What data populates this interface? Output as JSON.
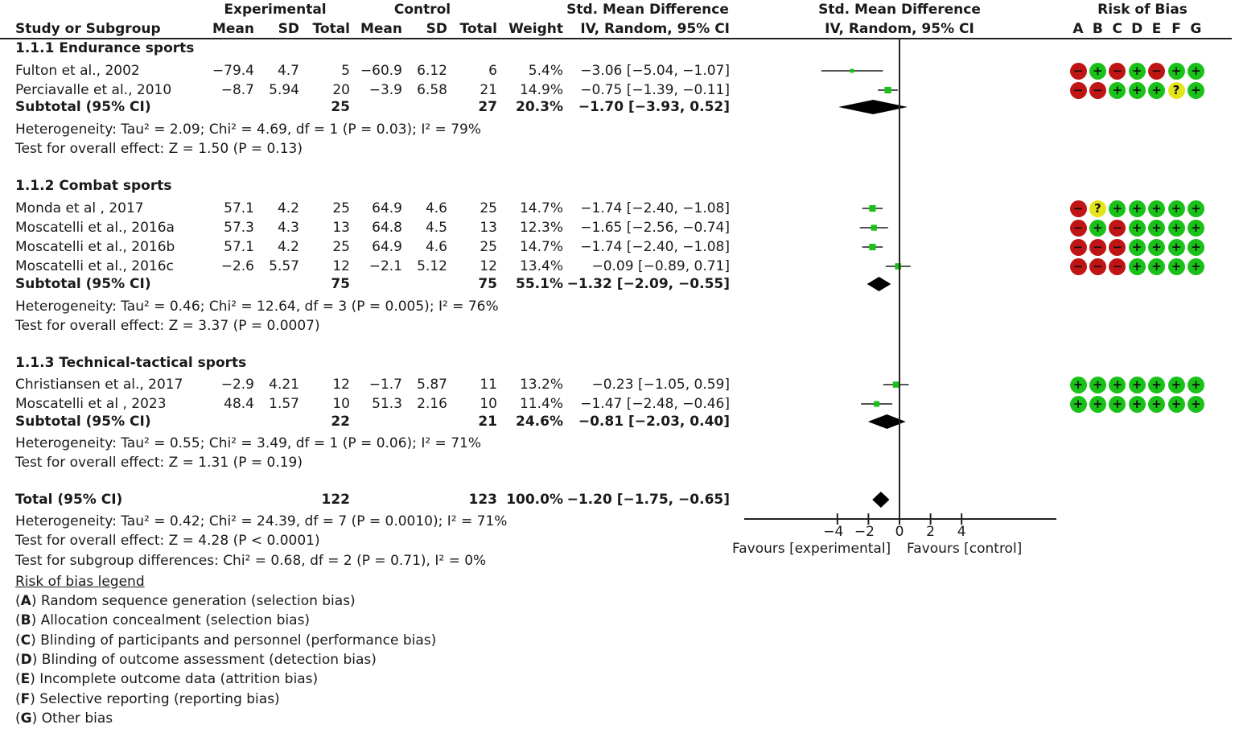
{
  "header": {
    "group_experimental": "Experimental",
    "group_control": "Control",
    "smd_title": "Std. Mean Difference",
    "smd_method": "IV, Random, 95% CI",
    "plot_title": "Std. Mean Difference",
    "plot_method": "IV, Random, 95% CI",
    "rob_title": "Risk of Bias",
    "col_study": "Study or Subgroup",
    "col_mean": "Mean",
    "col_sd": "SD",
    "col_total": "Total",
    "col_weight": "Weight",
    "rob_letters": [
      "A",
      "B",
      "C",
      "D",
      "E",
      "F",
      "G"
    ]
  },
  "subgroups": [
    {
      "title": "1.1.1 Endurance sports",
      "studies": [
        {
          "name": "Fulton et al., 2002",
          "e_mean": "−79.4",
          "e_sd": "4.7",
          "e_total": "5",
          "c_mean": "−60.9",
          "c_sd": "6.12",
          "c_total": "6",
          "weight": "5.4%",
          "ci": "−3.06 [−5.04, −1.07]",
          "rob": [
            "-",
            "+",
            "-",
            "+",
            "-",
            "+",
            "+"
          ]
        },
        {
          "name": "Perciavalle et al., 2010",
          "e_mean": "−8.7",
          "e_sd": "5.94",
          "e_total": "20",
          "c_mean": "−3.9",
          "c_sd": "6.58",
          "c_total": "21",
          "weight": "14.9%",
          "ci": "−0.75 [−1.39, −0.11]",
          "rob": [
            "-",
            "-",
            "+",
            "+",
            "+",
            "?",
            "+"
          ]
        }
      ],
      "subtotal": {
        "label": "Subtotal (95% CI)",
        "e_total": "25",
        "c_total": "27",
        "weight": "20.3%",
        "ci": "−1.70 [−3.93, 0.52]"
      },
      "heterogeneity": "Heterogeneity: Tau² = 2.09; Chi² = 4.69, df = 1 (P = 0.03); I² = 79%",
      "overall": "Test for overall effect: Z = 1.50 (P = 0.13)"
    },
    {
      "title": "1.1.2 Combat sports",
      "studies": [
        {
          "name": "Monda et al , 2017",
          "e_mean": "57.1",
          "e_sd": "4.2",
          "e_total": "25",
          "c_mean": "64.9",
          "c_sd": "4.6",
          "c_total": "25",
          "weight": "14.7%",
          "ci": "−1.74 [−2.40, −1.08]",
          "rob": [
            "-",
            "?",
            "+",
            "+",
            "+",
            "+",
            "+"
          ]
        },
        {
          "name": "Moscatelli et al., 2016a",
          "e_mean": "57.3",
          "e_sd": "4.3",
          "e_total": "13",
          "c_mean": "64.8",
          "c_sd": "4.5",
          "c_total": "13",
          "weight": "12.3%",
          "ci": "−1.65 [−2.56, −0.74]",
          "rob": [
            "-",
            "+",
            "-",
            "+",
            "+",
            "+",
            "+"
          ]
        },
        {
          "name": "Moscatelli et al., 2016b",
          "e_mean": "57.1",
          "e_sd": "4.2",
          "e_total": "25",
          "c_mean": "64.9",
          "c_sd": "4.6",
          "c_total": "25",
          "weight": "14.7%",
          "ci": "−1.74 [−2.40, −1.08]",
          "rob": [
            "-",
            "-",
            "-",
            "+",
            "+",
            "+",
            "+"
          ]
        },
        {
          "name": "Moscatelli et al., 2016c",
          "e_mean": "−2.6",
          "e_sd": "5.57",
          "e_total": "12",
          "c_mean": "−2.1",
          "c_sd": "5.12",
          "c_total": "12",
          "weight": "13.4%",
          "ci": "−0.09 [−0.89, 0.71]",
          "rob": [
            "-",
            "-",
            "-",
            "+",
            "+",
            "+",
            "+"
          ]
        }
      ],
      "subtotal": {
        "label": "Subtotal (95% CI)",
        "e_total": "75",
        "c_total": "75",
        "weight": "55.1%",
        "ci": "−1.32 [−2.09, −0.55]"
      },
      "heterogeneity": "Heterogeneity: Tau² = 0.46; Chi² = 12.64, df = 3 (P = 0.005); I² = 76%",
      "overall": "Test for overall effect: Z = 3.37 (P = 0.0007)"
    },
    {
      "title": "1.1.3 Technical-tactical sports",
      "studies": [
        {
          "name": "Christiansen et al., 2017",
          "e_mean": "−2.9",
          "e_sd": "4.21",
          "e_total": "12",
          "c_mean": "−1.7",
          "c_sd": "5.87",
          "c_total": "11",
          "weight": "13.2%",
          "ci": "−0.23 [−1.05, 0.59]",
          "rob": [
            "+",
            "+",
            "+",
            "+",
            "+",
            "+",
            "+"
          ]
        },
        {
          "name": "Moscatelli et al , 2023",
          "e_mean": "48.4",
          "e_sd": "1.57",
          "e_total": "10",
          "c_mean": "51.3",
          "c_sd": "2.16",
          "c_total": "10",
          "weight": "11.4%",
          "ci": "−1.47 [−2.48, −0.46]",
          "rob": [
            "+",
            "+",
            "+",
            "+",
            "+",
            "+",
            "+"
          ]
        }
      ],
      "subtotal": {
        "label": "Subtotal (95% CI)",
        "e_total": "22",
        "c_total": "21",
        "weight": "24.6%",
        "ci": "−0.81 [−2.03, 0.40]"
      },
      "heterogeneity": "Heterogeneity: Tau² = 0.55; Chi² = 3.49, df = 1 (P = 0.06); I² = 71%",
      "overall": "Test for overall effect: Z = 1.31 (P = 0.19)"
    }
  ],
  "total": {
    "label": "Total (95% CI)",
    "e_total": "122",
    "c_total": "123",
    "weight": "100.0%",
    "ci": "−1.20 [−1.75, −0.65]",
    "heterogeneity": "Heterogeneity: Tau² = 0.42; Chi² = 24.39, df = 7 (P = 0.0010); I² = 71%",
    "overall": "Test for overall effect: Z = 4.28 (P < 0.0001)",
    "subgroup_diff": "Test for subgroup differences: Chi² = 0.68, df = 2 (P = 0.71), I² = 0%"
  },
  "axis": {
    "ticks": [
      "−4",
      "−2",
      "0",
      "2",
      "4"
    ],
    "favours_left": "Favours [experimental]",
    "favours_right": "Favours [control]"
  },
  "legend": {
    "title": "Risk of bias legend",
    "items": [
      {
        "key": "A",
        "text": " Random sequence generation (selection bias)"
      },
      {
        "key": "B",
        "text": " Allocation concealment (selection bias)"
      },
      {
        "key": "C",
        "text": " Blinding of participants and personnel (performance bias)"
      },
      {
        "key": "D",
        "text": " Blinding of outcome assessment (detection bias)"
      },
      {
        "key": "E",
        "text": " Incomplete outcome data (attrition bias)"
      },
      {
        "key": "F",
        "text": " Selective reporting (reporting bias)"
      },
      {
        "key": "G",
        "text": " Other bias"
      }
    ]
  },
  "colors": {
    "low_risk": "#19c119",
    "high_risk": "#c01515",
    "unclear_risk": "#e4e41a",
    "point": "#19c119",
    "diamond": "#000000"
  },
  "chart_data": {
    "type": "forest",
    "title": "Std. Mean Difference IV, Random, 95% CI",
    "xlabel": "Favours [experimental]   Favours [control]",
    "xlim": [
      -10,
      10
    ],
    "xticks": [
      -4,
      -2,
      0,
      2,
      4
    ],
    "studies": [
      {
        "study": "Fulton et al., 2002",
        "subgroup": "1.1.1 Endurance sports",
        "smd": -3.06,
        "lower": -5.04,
        "upper": -1.07,
        "weight": 5.4
      },
      {
        "study": "Perciavalle et al., 2010",
        "subgroup": "1.1.1 Endurance sports",
        "smd": -0.75,
        "lower": -1.39,
        "upper": -0.11,
        "weight": 14.9
      },
      {
        "study": "Monda et al , 2017",
        "subgroup": "1.1.2 Combat sports",
        "smd": -1.74,
        "lower": -2.4,
        "upper": -1.08,
        "weight": 14.7
      },
      {
        "study": "Moscatelli et al., 2016a",
        "subgroup": "1.1.2 Combat sports",
        "smd": -1.65,
        "lower": -2.56,
        "upper": -0.74,
        "weight": 12.3
      },
      {
        "study": "Moscatelli et al., 2016b",
        "subgroup": "1.1.2 Combat sports",
        "smd": -1.74,
        "lower": -2.4,
        "upper": -1.08,
        "weight": 14.7
      },
      {
        "study": "Moscatelli et al., 2016c",
        "subgroup": "1.1.2 Combat sports",
        "smd": -0.09,
        "lower": -0.89,
        "upper": 0.71,
        "weight": 13.4
      },
      {
        "study": "Christiansen et al., 2017",
        "subgroup": "1.1.3 Technical-tactical sports",
        "smd": -0.23,
        "lower": -1.05,
        "upper": 0.59,
        "weight": 13.2
      },
      {
        "study": "Moscatelli et al , 2023",
        "subgroup": "1.1.3 Technical-tactical sports",
        "smd": -1.47,
        "lower": -2.48,
        "upper": -0.46,
        "weight": 11.4
      }
    ],
    "subtotals": [
      {
        "subgroup": "1.1.1 Endurance sports",
        "smd": -1.7,
        "lower": -3.93,
        "upper": 0.52,
        "weight": 20.3
      },
      {
        "subgroup": "1.1.2 Combat sports",
        "smd": -1.32,
        "lower": -2.09,
        "upper": -0.55,
        "weight": 55.1
      },
      {
        "subgroup": "1.1.3 Technical-tactical sports",
        "smd": -0.81,
        "lower": -2.03,
        "upper": 0.4,
        "weight": 24.6
      }
    ],
    "total": {
      "smd": -1.2,
      "lower": -1.75,
      "upper": -0.65,
      "weight": 100.0
    }
  }
}
